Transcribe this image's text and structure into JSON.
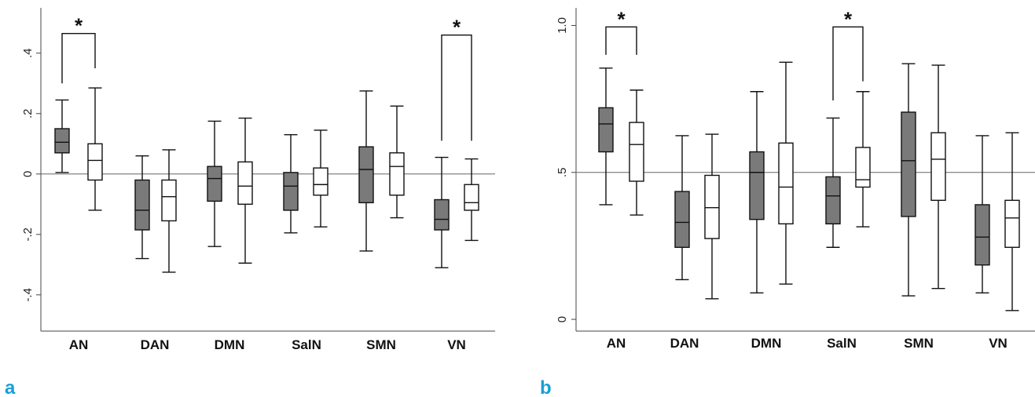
{
  "accent_color": "#1a9ed4",
  "fill_colors": {
    "dark": "#7a7a7a",
    "light": "#ffffff"
  },
  "chart_data": [
    {
      "type": "box",
      "panel_label": "a",
      "categories": [
        "AN",
        "DAN",
        "DMN",
        "SalN",
        "SMN",
        "VN"
      ],
      "ylim": [
        -0.52,
        0.55
      ],
      "yticks": [
        {
          "v": -0.4,
          "label": "-.4"
        },
        {
          "v": -0.2,
          "label": "-.2"
        },
        {
          "v": 0,
          "label": "0"
        },
        {
          "v": 0.2,
          "label": ".2"
        },
        {
          "v": 0.4,
          "label": ".4"
        }
      ],
      "reference_line": 0,
      "series": [
        {
          "fill": "dark",
          "boxes": [
            {
              "min": 0.005,
              "q1": 0.07,
              "median": 0.105,
              "q3": 0.15,
              "max": 0.245
            },
            {
              "min": -0.28,
              "q1": -0.185,
              "median": -0.12,
              "q3": -0.02,
              "max": 0.06
            },
            {
              "min": -0.24,
              "q1": -0.09,
              "median": -0.015,
              "q3": 0.025,
              "max": 0.175
            },
            {
              "min": -0.195,
              "q1": -0.12,
              "median": -0.04,
              "q3": 0.005,
              "max": 0.13
            },
            {
              "min": -0.255,
              "q1": -0.095,
              "median": 0.015,
              "q3": 0.09,
              "max": 0.275
            },
            {
              "min": -0.31,
              "q1": -0.185,
              "median": -0.15,
              "q3": -0.085,
              "max": 0.055
            }
          ]
        },
        {
          "fill": "light",
          "boxes": [
            {
              "min": -0.12,
              "q1": -0.02,
              "median": 0.045,
              "q3": 0.1,
              "max": 0.285
            },
            {
              "min": -0.325,
              "q1": -0.155,
              "median": -0.075,
              "q3": -0.02,
              "max": 0.08
            },
            {
              "min": -0.295,
              "q1": -0.1,
              "median": -0.04,
              "q3": 0.04,
              "max": 0.185
            },
            {
              "min": -0.175,
              "q1": -0.07,
              "median": -0.035,
              "q3": 0.02,
              "max": 0.145
            },
            {
              "min": -0.145,
              "q1": -0.07,
              "median": 0.025,
              "q3": 0.07,
              "max": 0.225
            },
            {
              "min": -0.22,
              "q1": -0.12,
              "median": -0.095,
              "q3": -0.035,
              "max": 0.05
            }
          ]
        }
      ],
      "significance": [
        {
          "category": "AN",
          "label": "*",
          "y_bracket": 0.465,
          "y_left": 0.3,
          "y_right": 0.35
        },
        {
          "category": "VN",
          "label": "*",
          "y_bracket": 0.46,
          "y_left": 0.11,
          "y_right": 0.11
        }
      ]
    },
    {
      "type": "box",
      "panel_label": "b",
      "categories": [
        "AN",
        "DAN",
        "DMN",
        "SalN",
        "SMN",
        "VN"
      ],
      "ylim": [
        -0.04,
        1.06
      ],
      "yticks": [
        {
          "v": 0,
          "label": "0"
        },
        {
          "v": 0.5,
          "label": ".5"
        },
        {
          "v": 1.0,
          "label": "1.0"
        }
      ],
      "reference_line": 0.5,
      "series": [
        {
          "fill": "dark",
          "boxes": [
            {
              "min": 0.39,
              "q1": 0.57,
              "median": 0.665,
              "q3": 0.72,
              "max": 0.855
            },
            {
              "min": 0.135,
              "q1": 0.245,
              "median": 0.33,
              "q3": 0.435,
              "max": 0.625
            },
            {
              "min": 0.09,
              "q1": 0.34,
              "median": 0.5,
              "q3": 0.57,
              "max": 0.775
            },
            {
              "min": 0.245,
              "q1": 0.325,
              "median": 0.42,
              "q3": 0.485,
              "max": 0.685
            },
            {
              "min": 0.08,
              "q1": 0.35,
              "median": 0.54,
              "q3": 0.705,
              "max": 0.87
            },
            {
              "min": 0.09,
              "q1": 0.185,
              "median": 0.28,
              "q3": 0.39,
              "max": 0.625
            }
          ]
        },
        {
          "fill": "light",
          "boxes": [
            {
              "min": 0.355,
              "q1": 0.47,
              "median": 0.595,
              "q3": 0.67,
              "max": 0.78
            },
            {
              "min": 0.07,
              "q1": 0.275,
              "median": 0.38,
              "q3": 0.49,
              "max": 0.63
            },
            {
              "min": 0.12,
              "q1": 0.325,
              "median": 0.45,
              "q3": 0.6,
              "max": 0.875
            },
            {
              "min": 0.315,
              "q1": 0.45,
              "median": 0.475,
              "q3": 0.585,
              "max": 0.775
            },
            {
              "min": 0.105,
              "q1": 0.405,
              "median": 0.545,
              "q3": 0.635,
              "max": 0.865
            },
            {
              "min": 0.03,
              "q1": 0.245,
              "median": 0.345,
              "q3": 0.405,
              "max": 0.635
            }
          ]
        }
      ],
      "significance": [
        {
          "category": "AN",
          "label": "*",
          "y_bracket": 0.995,
          "y_left": 0.9,
          "y_right": 0.9
        },
        {
          "category": "SalN",
          "label": "*",
          "y_bracket": 0.995,
          "y_left": 0.745,
          "y_right": 0.81
        }
      ]
    }
  ]
}
